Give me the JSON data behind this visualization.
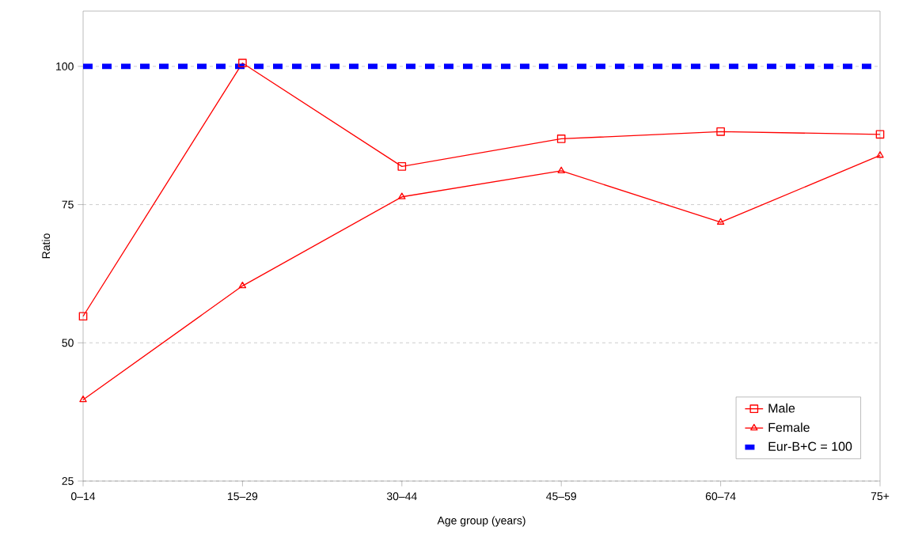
{
  "chart_data": {
    "type": "line",
    "xlabel": "Age group (years)",
    "ylabel": "Ratio",
    "categories": [
      "0–14",
      "15–29",
      "30–44",
      "45–59",
      "60–74",
      "75+"
    ],
    "series": [
      {
        "name": "Male",
        "color": "#ff0000",
        "marker": "square",
        "values": [
          54.8,
          100.6,
          81.9,
          86.9,
          88.2,
          87.7
        ]
      },
      {
        "name": "Female",
        "color": "#ff0000",
        "marker": "triangle",
        "values": [
          39.7,
          60.3,
          76.4,
          81.1,
          71.8,
          83.9
        ]
      }
    ],
    "ref_lines": [
      {
        "axis": "y",
        "value": 100,
        "label": "Eur-B+C = 100",
        "color": "#0000ff",
        "line_style": "dashed"
      }
    ],
    "ylim": [
      25,
      110
    ],
    "yticks": [
      25,
      50,
      75,
      100
    ],
    "grid": "y",
    "legend": "bottom right",
    "line_style": "solid"
  }
}
